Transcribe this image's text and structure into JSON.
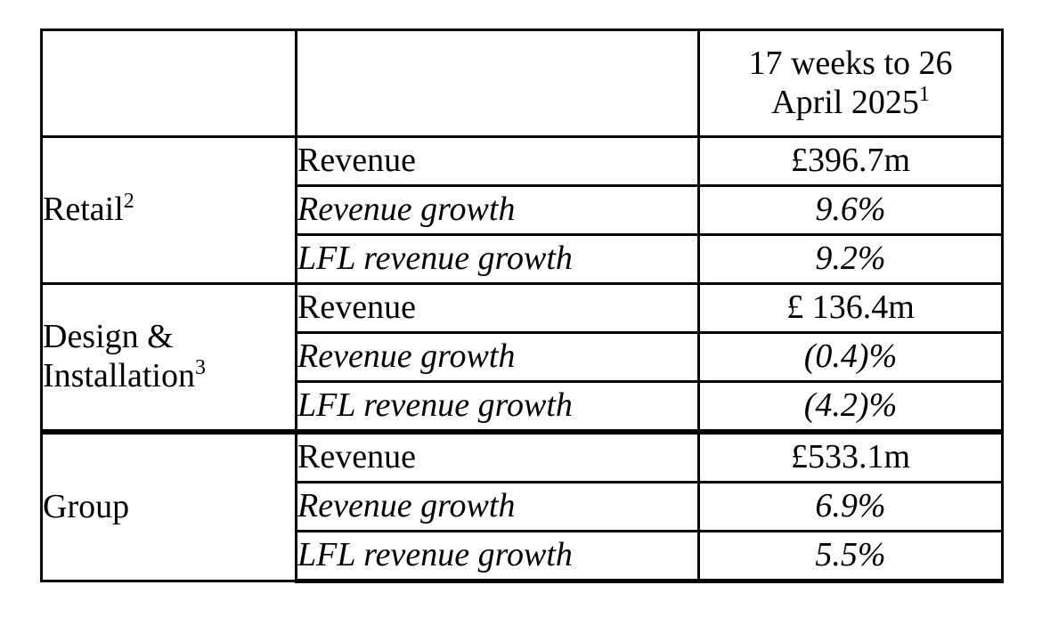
{
  "table": {
    "header": {
      "period_line1": "17 weeks to 26",
      "period_line2": "April 2025",
      "period_note": "1"
    },
    "segments": [
      {
        "name_line1": "Retail",
        "name_line2": "",
        "note": "2",
        "rows": [
          {
            "metric": "Revenue",
            "value": "£396.7m"
          },
          {
            "metric": "Revenue growth",
            "value": "9.6%"
          },
          {
            "metric": "LFL revenue growth",
            "value": "9.2%"
          }
        ]
      },
      {
        "name_line1": "Design &",
        "name_line2": "Installation",
        "note": "3",
        "rows": [
          {
            "metric": "Revenue",
            "value": "£ 136.4m"
          },
          {
            "metric": "Revenue growth",
            "value": "(0.4)%"
          },
          {
            "metric": "LFL revenue growth",
            "value": "(4.2)%"
          }
        ]
      },
      {
        "name_line1": "Group",
        "name_line2": "",
        "note": "",
        "rows": [
          {
            "metric": "Revenue",
            "value": "£533.1m"
          },
          {
            "metric": "Revenue growth",
            "value": "6.9%"
          },
          {
            "metric": "LFL revenue growth",
            "value": "5.5%"
          }
        ]
      }
    ]
  }
}
